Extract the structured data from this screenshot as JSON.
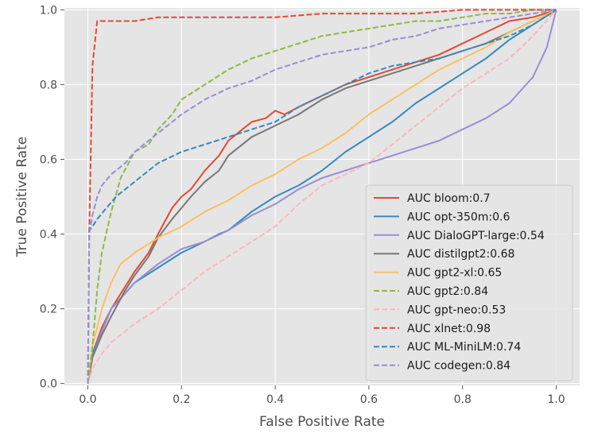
{
  "chart_data": {
    "type": "line",
    "title": "",
    "xlabel": "False Positive Rate",
    "ylabel": "True Positive Rate",
    "xlim": [
      -0.05,
      1.05
    ],
    "ylim": [
      -0.005,
      1.005
    ],
    "xticks": [
      0.0,
      0.2,
      0.4,
      0.6,
      0.8,
      1.0
    ],
    "yticks": [
      0.0,
      0.2,
      0.4,
      0.6,
      0.8,
      1.0
    ],
    "xtick_labels": [
      "0.0",
      "0.2",
      "0.4",
      "0.6",
      "0.8",
      "1.0"
    ],
    "ytick_labels": [
      "0.0",
      "0.2",
      "0.4",
      "0.6",
      "0.8",
      "1.0"
    ],
    "grid": true,
    "legend_position": "lower-right",
    "series": [
      {
        "name": "AUC bloom:0.7",
        "color": "#e24a33",
        "dash": "solid",
        "x": [
          0,
          0.01,
          0.03,
          0.05,
          0.08,
          0.1,
          0.13,
          0.15,
          0.18,
          0.2,
          0.22,
          0.25,
          0.28,
          0.3,
          0.33,
          0.35,
          0.38,
          0.4,
          0.42,
          0.45,
          0.5,
          0.55,
          0.6,
          0.65,
          0.7,
          0.75,
          0.8,
          0.85,
          0.9,
          0.95,
          1.0
        ],
        "y": [
          0,
          0.08,
          0.15,
          0.2,
          0.26,
          0.3,
          0.35,
          0.4,
          0.47,
          0.5,
          0.52,
          0.57,
          0.61,
          0.65,
          0.68,
          0.7,
          0.71,
          0.73,
          0.72,
          0.74,
          0.77,
          0.8,
          0.82,
          0.84,
          0.86,
          0.88,
          0.91,
          0.94,
          0.97,
          0.98,
          1.0
        ]
      },
      {
        "name": "AUC opt-350m:0.6",
        "color": "#348abd",
        "dash": "solid",
        "x": [
          0,
          0.01,
          0.03,
          0.05,
          0.1,
          0.15,
          0.2,
          0.25,
          0.28,
          0.3,
          0.35,
          0.4,
          0.45,
          0.5,
          0.55,
          0.6,
          0.65,
          0.7,
          0.75,
          0.8,
          0.85,
          0.9,
          0.95,
          1.0
        ],
        "y": [
          0,
          0.08,
          0.14,
          0.2,
          0.27,
          0.31,
          0.35,
          0.38,
          0.4,
          0.41,
          0.46,
          0.5,
          0.53,
          0.57,
          0.62,
          0.66,
          0.7,
          0.75,
          0.79,
          0.83,
          0.87,
          0.92,
          0.96,
          1.0
        ]
      },
      {
        "name": "AUC DialoGPT-large:0.54",
        "color": "#988ed5",
        "dash": "solid",
        "x": [
          0,
          0.01,
          0.03,
          0.05,
          0.1,
          0.15,
          0.2,
          0.25,
          0.3,
          0.35,
          0.4,
          0.45,
          0.5,
          0.55,
          0.6,
          0.65,
          0.7,
          0.75,
          0.8,
          0.85,
          0.9,
          0.95,
          0.98,
          1.0
        ],
        "y": [
          0,
          0.07,
          0.14,
          0.2,
          0.27,
          0.32,
          0.36,
          0.38,
          0.41,
          0.45,
          0.48,
          0.52,
          0.55,
          0.57,
          0.59,
          0.61,
          0.63,
          0.65,
          0.68,
          0.71,
          0.75,
          0.82,
          0.9,
          1.0
        ]
      },
      {
        "name": "AUC distilgpt2:0.68",
        "color": "#777777",
        "dash": "solid",
        "x": [
          0,
          0.01,
          0.03,
          0.05,
          0.08,
          0.1,
          0.13,
          0.15,
          0.18,
          0.2,
          0.22,
          0.25,
          0.28,
          0.3,
          0.33,
          0.35,
          0.4,
          0.45,
          0.5,
          0.55,
          0.6,
          0.65,
          0.7,
          0.75,
          0.8,
          0.85,
          0.9,
          0.95,
          1.0
        ],
        "y": [
          0,
          0.07,
          0.13,
          0.18,
          0.25,
          0.29,
          0.34,
          0.39,
          0.44,
          0.47,
          0.5,
          0.54,
          0.57,
          0.61,
          0.64,
          0.66,
          0.69,
          0.72,
          0.76,
          0.79,
          0.81,
          0.83,
          0.85,
          0.87,
          0.89,
          0.91,
          0.94,
          0.97,
          1.0
        ]
      },
      {
        "name": "AUC gpt2-xl:0.65",
        "color": "#fbc15e",
        "dash": "solid",
        "x": [
          0,
          0.01,
          0.03,
          0.05,
          0.07,
          0.1,
          0.15,
          0.2,
          0.25,
          0.3,
          0.35,
          0.4,
          0.45,
          0.5,
          0.55,
          0.6,
          0.65,
          0.7,
          0.75,
          0.8,
          0.85,
          0.9,
          0.95,
          1.0
        ],
        "y": [
          0,
          0.1,
          0.2,
          0.27,
          0.32,
          0.35,
          0.39,
          0.42,
          0.46,
          0.49,
          0.53,
          0.56,
          0.6,
          0.63,
          0.67,
          0.72,
          0.76,
          0.8,
          0.84,
          0.87,
          0.9,
          0.94,
          0.97,
          1.0
        ]
      },
      {
        "name": "AUC gpt2:0.84",
        "color": "#8eba42",
        "dash": "dashed",
        "x": [
          0,
          0.01,
          0.02,
          0.03,
          0.05,
          0.07,
          0.1,
          0.13,
          0.15,
          0.18,
          0.2,
          0.25,
          0.3,
          0.35,
          0.4,
          0.45,
          0.5,
          0.55,
          0.6,
          0.65,
          0.7,
          0.75,
          0.8,
          0.85,
          0.9,
          0.95,
          1.0
        ],
        "y": [
          0,
          0.1,
          0.25,
          0.35,
          0.46,
          0.55,
          0.62,
          0.64,
          0.68,
          0.72,
          0.76,
          0.8,
          0.84,
          0.87,
          0.89,
          0.91,
          0.93,
          0.94,
          0.95,
          0.96,
          0.97,
          0.97,
          0.98,
          0.99,
          0.99,
          1.0,
          1.0
        ]
      },
      {
        "name": "AUC gpt-neo:0.53",
        "color": "#ffb5b8",
        "dash": "dashed",
        "x": [
          0,
          0.01,
          0.03,
          0.05,
          0.1,
          0.15,
          0.2,
          0.25,
          0.3,
          0.35,
          0.4,
          0.45,
          0.5,
          0.55,
          0.6,
          0.65,
          0.7,
          0.75,
          0.8,
          0.85,
          0.9,
          0.95,
          1.0
        ],
        "y": [
          0,
          0.04,
          0.08,
          0.11,
          0.16,
          0.2,
          0.25,
          0.3,
          0.34,
          0.38,
          0.42,
          0.48,
          0.53,
          0.56,
          0.59,
          0.64,
          0.69,
          0.74,
          0.79,
          0.83,
          0.87,
          0.93,
          1.0
        ]
      },
      {
        "name": "AUC xlnet:0.98",
        "color": "#e24a33",
        "dash": "dashed",
        "x": [
          0,
          0.003,
          0.01,
          0.02,
          0.05,
          0.1,
          0.15,
          0.2,
          0.3,
          0.4,
          0.5,
          0.6,
          0.7,
          0.8,
          0.9,
          1.0
        ],
        "y": [
          0,
          0.4,
          0.85,
          0.97,
          0.97,
          0.97,
          0.98,
          0.98,
          0.98,
          0.98,
          0.99,
          0.99,
          0.99,
          1.0,
          1.0,
          1.0
        ]
      },
      {
        "name": "AUC ML-MiniLM:0.74",
        "color": "#348abd",
        "dash": "dashed",
        "x": [
          0,
          0.003,
          0.01,
          0.02,
          0.04,
          0.06,
          0.1,
          0.15,
          0.2,
          0.25,
          0.3,
          0.35,
          0.4,
          0.45,
          0.5,
          0.55,
          0.6,
          0.65,
          0.7,
          0.75,
          0.8,
          0.85,
          0.9,
          0.95,
          1.0
        ],
        "y": [
          0,
          0.41,
          0.42,
          0.44,
          0.47,
          0.5,
          0.54,
          0.59,
          0.62,
          0.64,
          0.66,
          0.68,
          0.7,
          0.74,
          0.77,
          0.8,
          0.83,
          0.85,
          0.86,
          0.87,
          0.89,
          0.91,
          0.93,
          0.96,
          1.0
        ]
      },
      {
        "name": "AUC codegen:0.84",
        "color": "#988ed5",
        "dash": "dashed",
        "x": [
          0,
          0.003,
          0.01,
          0.02,
          0.03,
          0.05,
          0.08,
          0.1,
          0.12,
          0.15,
          0.18,
          0.2,
          0.25,
          0.3,
          0.35,
          0.4,
          0.45,
          0.5,
          0.55,
          0.6,
          0.65,
          0.7,
          0.75,
          0.8,
          0.85,
          0.9,
          0.95,
          1.0
        ],
        "y": [
          0,
          0.4,
          0.45,
          0.5,
          0.53,
          0.56,
          0.59,
          0.62,
          0.64,
          0.67,
          0.7,
          0.72,
          0.76,
          0.79,
          0.81,
          0.84,
          0.86,
          0.88,
          0.89,
          0.9,
          0.92,
          0.93,
          0.95,
          0.96,
          0.97,
          0.98,
          0.99,
          1.0
        ]
      }
    ]
  }
}
